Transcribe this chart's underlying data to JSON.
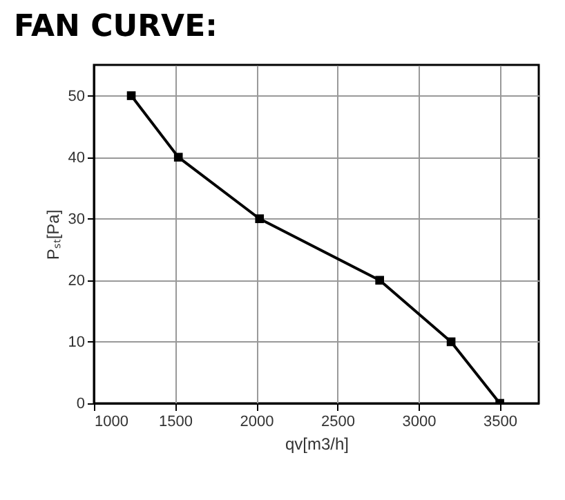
{
  "chart_data": {
    "type": "line",
    "title": "FAN CURVE:",
    "xlabel": "qv[m3/h]",
    "ylabel": "Pₛₜ[Pa]",
    "x": [
      1230,
      1520,
      2020,
      2760,
      3200,
      3500
    ],
    "series": [
      {
        "color": "#000000",
        "values": [
          50,
          40,
          30,
          20,
          10,
          0
        ]
      }
    ],
    "xlim": [
      1000,
      3740
    ],
    "xticks": [
      1000,
      1500,
      2000,
      2500,
      3000,
      3500
    ],
    "ylim": [
      0,
      55
    ],
    "yticks": [
      0,
      10,
      20,
      30,
      40,
      50
    ],
    "grid": true,
    "marker": "square",
    "line_style": "solid"
  }
}
